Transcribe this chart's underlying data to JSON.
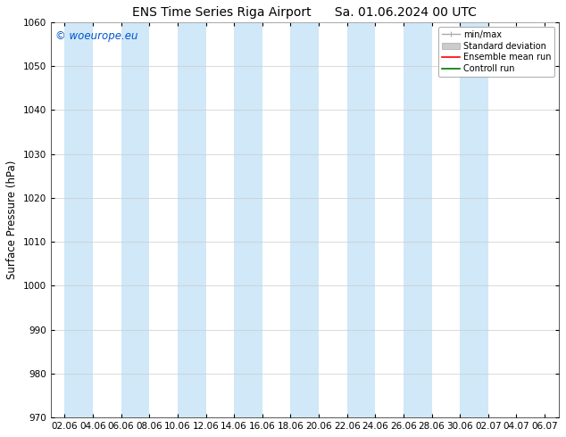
{
  "title_left": "ENS Time Series Riga Airport",
  "title_right": "Sa. 01.06.2024 00 UTC",
  "ylabel": "Surface Pressure (hPa)",
  "ylim": [
    970,
    1060
  ],
  "yticks": [
    970,
    980,
    990,
    1000,
    1010,
    1020,
    1030,
    1040,
    1050,
    1060
  ],
  "xtick_labels": [
    "02.06",
    "04.06",
    "06.06",
    "08.06",
    "10.06",
    "12.06",
    "14.06",
    "16.06",
    "18.06",
    "20.06",
    "22.06",
    "24.06",
    "26.06",
    "28.06",
    "30.06",
    "02.07",
    "04.07",
    "06.07"
  ],
  "watermark": "© woeurope.eu",
  "watermark_color": "#0055cc",
  "bg_color": "#ffffff",
  "plot_bg_color": "#ffffff",
  "shaded_band_color": "#d0e8f8",
  "shaded_band_alpha": 1.0,
  "legend_items": [
    {
      "label": "min/max",
      "color": "#aaaaaa",
      "lw": 1.0
    },
    {
      "label": "Standard deviation",
      "color": "#cccccc",
      "lw": 6
    },
    {
      "label": "Ensemble mean run",
      "color": "#ff0000",
      "lw": 1.2
    },
    {
      "label": "Controll run",
      "color": "#007700",
      "lw": 1.2
    }
  ],
  "title_fontsize": 10,
  "tick_fontsize": 7.5,
  "ylabel_fontsize": 8.5,
  "legend_fontsize": 7,
  "grid_color": "#cccccc",
  "spine_color": "#555555"
}
